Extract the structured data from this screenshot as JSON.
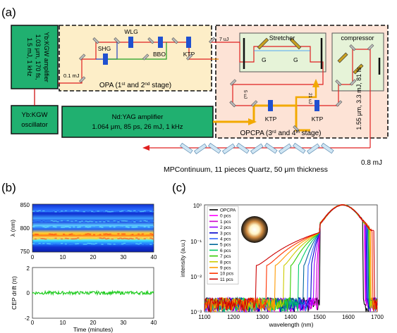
{
  "panel_a": {
    "label": "(a)",
    "ykgw_amp": [
      "Yb:KGW amplifier",
      "1.03 μm, 170 fs,",
      "1.5 mJ, 1 kHz"
    ],
    "oscillator": [
      "Yb:KGW",
      "oscillator"
    ],
    "ndyag": [
      "Nd:YAG amplifier",
      "1.064 μm, 85 ps, 26 mJ, 1 kHz"
    ],
    "opa_label": "OPA (1st and 2nd stage)",
    "opcpa_label": "OPCPA (3rd and 4th stage)",
    "stretcher": "Stretcher",
    "compressor": "compressor",
    "shg": "SHG",
    "wlg": "WLG",
    "bbo": "BBO",
    "ktp": "KTP",
    "grating": "G",
    "seed_energy": "0.1 mJ",
    "uj_7": "7 uJ",
    "uj_5": "5 uJ",
    "uj_21": "21 uJ",
    "output_spec": "1.55 μm, 3.3 mJ, 81 fs",
    "final_energy": "0.8 mJ",
    "mpcontinuum": "MPContinuum, 11 pieces Quartz, 50 μm thickness"
  },
  "panel_b": {
    "label": "(b)",
    "top_ylabel": "λ (nm)",
    "top_yticks": [
      "850",
      "800",
      "750"
    ],
    "bottom_ylabel": "CEP drift (π)",
    "bottom_yticks": [
      "2",
      "0",
      "-2"
    ],
    "xticks": [
      "0",
      "10",
      "20",
      "30",
      "40"
    ],
    "xlabel": "Time (minutes)"
  },
  "panel_c": {
    "label": "(c)",
    "ylabel": "intensity (a.u.)",
    "xlabel": "wavelength (nm)",
    "yticks": [
      "10⁰",
      "10⁻¹",
      "10⁻²",
      "10⁻³"
    ],
    "xticks": [
      "1100",
      "1200",
      "1300",
      "1400",
      "1500",
      "1600",
      "1700"
    ]
  },
  "chart_data": [
    {
      "type": "heatmap",
      "x": [
        0,
        40
      ],
      "y": [
        750,
        850
      ],
      "ylabel": "λ (nm)",
      "bands": [
        {
          "y": 836,
          "level": 0.35
        },
        {
          "y": 815,
          "level": 0.3
        },
        {
          "y": 803,
          "level": 0.3
        },
        {
          "y": 788,
          "level": 0.9
        },
        {
          "y": 779,
          "level": 0.6
        },
        {
          "y": 768,
          "level": 0.25
        }
      ]
    },
    {
      "type": "line",
      "xlabel": "Time (minutes)",
      "ylabel": "CEP drift (π)",
      "xlim": [
        0,
        40
      ],
      "ylim": [
        -2,
        2
      ],
      "series": [
        {
          "color": "#22cc22",
          "values": [
            0.0,
            0.0
          ]
        }
      ]
    },
    {
      "type": "line",
      "scale": "log",
      "xlabel": "wavelength (nm)",
      "ylabel": "intensity (a.u.)",
      "xlim": [
        1100,
        1700
      ],
      "ylim": [
        0.001,
        1
      ],
      "series": [
        {
          "name": "OPCPA",
          "color": "#000000",
          "lo": 1500,
          "hi": 1650
        },
        {
          "name": "0 pcs",
          "color": "#ff00ff",
          "lo": 1495,
          "hi": 1655
        },
        {
          "name": "1 pcs",
          "color": "#cc00cc",
          "lo": 1490,
          "hi": 1658
        },
        {
          "name": "2 pcs",
          "color": "#9900ff",
          "lo": 1480,
          "hi": 1660
        },
        {
          "name": "3 pcs",
          "color": "#0000cc",
          "lo": 1470,
          "hi": 1663
        },
        {
          "name": "4 pcs",
          "color": "#3366ff",
          "lo": 1460,
          "hi": 1665
        },
        {
          "name": "5 pcs",
          "color": "#006699",
          "lo": 1445,
          "hi": 1668
        },
        {
          "name": "6 pcs",
          "color": "#00cc66",
          "lo": 1425,
          "hi": 1670
        },
        {
          "name": "7 pcs",
          "color": "#33cc00",
          "lo": 1400,
          "hi": 1672
        },
        {
          "name": "8 pcs",
          "color": "#cccc00",
          "lo": 1375,
          "hi": 1675
        },
        {
          "name": "9 pcs",
          "color": "#ff9900",
          "lo": 1345,
          "hi": 1678
        },
        {
          "name": "10 pcs",
          "color": "#ff3300",
          "lo": 1315,
          "hi": 1682
        },
        {
          "name": "11 pcs",
          "color": "#cc0000",
          "lo": 1280,
          "hi": 1690
        }
      ]
    }
  ]
}
